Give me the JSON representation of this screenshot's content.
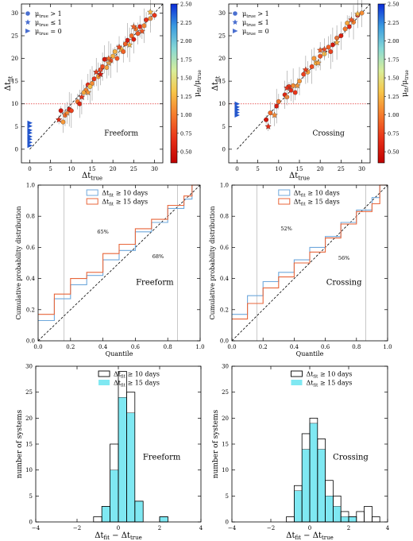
{
  "chart_data": [
    {
      "id": "scatter_freeform",
      "type": "scatter",
      "label": "Freeform",
      "xlabel": "Δt_true",
      "ylabel": "Δt_fit",
      "xlim": [
        -2,
        32
      ],
      "ylim": [
        -3,
        32
      ],
      "xticks": [
        0,
        5,
        10,
        15,
        20,
        25,
        30
      ],
      "yticks": [
        0,
        5,
        10,
        15,
        20,
        25,
        30
      ],
      "hline": 10,
      "colorbar": {
        "label": "μ_fit/μ_true",
        "min": 0.35,
        "max": 2.5,
        "ticks": [
          0.5,
          0.75,
          1.0,
          1.25,
          1.5,
          1.75,
          2.0,
          2.25,
          2.5
        ]
      },
      "legend": [
        "μ_true > 1",
        "μ_true ≤ 1",
        "μ_true = 0"
      ],
      "series": [
        {
          "name": "μ_true > 1",
          "marker": "circle",
          "points": [
            [
              7.5,
              8.5
            ],
            [
              8.5,
              7.5
            ],
            [
              9.5,
              8.8
            ],
            [
              11.5,
              10.5
            ],
            [
              12,
              10
            ],
            [
              13.5,
              13
            ],
            [
              14,
              14.2
            ],
            [
              15,
              14.5
            ],
            [
              15.5,
              15.5
            ],
            [
              16.5,
              16
            ],
            [
              17,
              17.5
            ],
            [
              18.5,
              18
            ],
            [
              19.5,
              19.5
            ],
            [
              20,
              20.5
            ],
            [
              21,
              20
            ],
            [
              22,
              22
            ],
            [
              22.5,
              21.5
            ],
            [
              23.5,
              24
            ],
            [
              24.5,
              25
            ],
            [
              25,
              24.2
            ],
            [
              25.5,
              26.5
            ],
            [
              26.5,
              27
            ],
            [
              27.5,
              27.2
            ],
            [
              28,
              28.5
            ],
            [
              29,
              28.8
            ],
            [
              30,
              29.5
            ],
            [
              8,
              6
            ],
            [
              10,
              8.5
            ],
            [
              13,
              12.5
            ],
            [
              17.5,
              18.2
            ],
            [
              20.5,
              21.5
            ],
            [
              26,
              25.5
            ],
            [
              14.5,
              13.8
            ],
            [
              23,
              23.2
            ],
            [
              18,
              19.8
            ]
          ]
        },
        {
          "name": "μ_true ≤ 1",
          "marker": "star",
          "points": [
            [
              7,
              6.5
            ],
            [
              9,
              8
            ],
            [
              12.5,
              11.5
            ],
            [
              14,
              12.5
            ],
            [
              16,
              17
            ],
            [
              19,
              19
            ],
            [
              21.5,
              22.5
            ],
            [
              24,
              23
            ],
            [
              27,
              26
            ],
            [
              29,
              30.2
            ],
            [
              25,
              27
            ],
            [
              17,
              16.5
            ],
            [
              19,
              20
            ]
          ]
        },
        {
          "name": "μ_true = 0",
          "marker": "triangle",
          "points": [
            [
              0,
              0.8
            ],
            [
              0,
              1.5
            ],
            [
              0,
              2.2
            ],
            [
              0,
              2.8
            ],
            [
              0,
              3.6
            ],
            [
              0,
              4.2
            ],
            [
              0,
              5.1
            ],
            [
              0,
              5.8
            ]
          ]
        }
      ]
    },
    {
      "id": "scatter_crossing",
      "type": "scatter",
      "label": "Crossing",
      "xlabel": "Δt_true",
      "ylabel": "Δt_fit",
      "xlim": [
        -2,
        32
      ],
      "ylim": [
        -3,
        32
      ],
      "xticks": [
        0,
        5,
        10,
        15,
        20,
        25,
        30
      ],
      "yticks": [
        0,
        5,
        10,
        15,
        20,
        25,
        30
      ],
      "hline": 10,
      "colorbar": {
        "label": "μ_fit/μ_true",
        "min": 0.35,
        "max": 2.5,
        "ticks": [
          0.5,
          0.75,
          1.0,
          1.25,
          1.5,
          1.75,
          2.0,
          2.25,
          2.5
        ]
      },
      "legend": [
        "μ_true > 1",
        "μ_true ≤ 1",
        "μ_true = 0"
      ],
      "series": [
        {
          "name": "μ_true > 1",
          "marker": "circle",
          "points": [
            [
              7,
              6.5
            ],
            [
              8,
              8
            ],
            [
              9.5,
              9.5
            ],
            [
              10,
              10.5
            ],
            [
              11.5,
              12
            ],
            [
              12,
              11.5
            ],
            [
              13,
              13
            ],
            [
              13.5,
              14
            ],
            [
              14,
              12.5
            ],
            [
              15,
              15
            ],
            [
              16,
              16.5
            ],
            [
              17,
              17
            ],
            [
              18,
              18.2
            ],
            [
              19,
              19
            ],
            [
              20,
              20.5
            ],
            [
              21,
              21
            ],
            [
              22,
              22.5
            ],
            [
              23,
              23
            ],
            [
              24,
              24.5
            ],
            [
              25,
              25
            ],
            [
              26,
              26.5
            ],
            [
              27,
              27
            ],
            [
              28,
              28
            ],
            [
              29,
              29.5
            ],
            [
              30,
              30
            ],
            [
              12.5,
              13.8
            ],
            [
              18.5,
              20
            ],
            [
              22.5,
              21.5
            ],
            [
              26.5,
              27.8
            ]
          ]
        },
        {
          "name": "μ_true ≤ 1",
          "marker": "star",
          "points": [
            [
              7.5,
              5
            ],
            [
              9,
              7.5
            ],
            [
              12,
              13.5
            ],
            [
              14.5,
              14
            ],
            [
              16.5,
              17.5
            ],
            [
              19.5,
              19
            ],
            [
              21,
              22
            ],
            [
              24,
              23.5
            ],
            [
              27.5,
              28.5
            ],
            [
              29,
              29.8
            ],
            [
              20,
              21.8
            ]
          ]
        },
        {
          "name": "μ_true = 0",
          "marker": "triangle",
          "points": [
            [
              0,
              7.5
            ],
            [
              0,
              8.1
            ],
            [
              0,
              8.7
            ],
            [
              0,
              9.3
            ],
            [
              0,
              10
            ]
          ]
        }
      ]
    },
    {
      "id": "cdf_freeform",
      "type": "line",
      "label": "Freeform",
      "xlabel": "Quantile",
      "ylabel": "Cumulative probability distribution",
      "xlim": [
        0,
        1
      ],
      "ylim": [
        0,
        1
      ],
      "xticks": [
        0.0,
        0.2,
        0.4,
        0.6,
        0.8,
        1.0
      ],
      "yticks": [
        0.0,
        0.2,
        0.4,
        0.6,
        0.8,
        1.0
      ],
      "vlines": [
        0.16,
        0.86
      ],
      "annotations": [
        {
          "text": "65%",
          "x": 0.4,
          "y": 0.69,
          "color": "#f08a2c"
        },
        {
          "text": "68%",
          "x": 0.74,
          "y": 0.53,
          "color": "#4a90d9"
        }
      ],
      "series": [
        {
          "name": "Δt_fit ≥ 10 days",
          "color": "#6fa8dc",
          "steps": [
            [
              0,
              0.13
            ],
            [
              0.1,
              0.27
            ],
            [
              0.2,
              0.36
            ],
            [
              0.3,
              0.42
            ],
            [
              0.4,
              0.52
            ],
            [
              0.5,
              0.58
            ],
            [
              0.6,
              0.7
            ],
            [
              0.7,
              0.76
            ],
            [
              0.8,
              0.85
            ],
            [
              0.9,
              0.91
            ],
            [
              0.95,
              1.0
            ],
            [
              1.0,
              1.0
            ]
          ]
        },
        {
          "name": "Δt_fit ≥ 15 days",
          "color": "#e8663a",
          "steps": [
            [
              0,
              0.17
            ],
            [
              0.1,
              0.3
            ],
            [
              0.2,
              0.4
            ],
            [
              0.3,
              0.44
            ],
            [
              0.4,
              0.56
            ],
            [
              0.5,
              0.62
            ],
            [
              0.6,
              0.72
            ],
            [
              0.7,
              0.78
            ],
            [
              0.8,
              0.87
            ],
            [
              0.9,
              0.93
            ],
            [
              0.95,
              1.0
            ],
            [
              1.0,
              1.0
            ]
          ]
        }
      ]
    },
    {
      "id": "cdf_crossing",
      "type": "line",
      "label": "Crossing",
      "xlabel": "Quantile",
      "ylabel": "Cumulative probability distribution",
      "xlim": [
        0,
        1
      ],
      "ylim": [
        0,
        1
      ],
      "xticks": [
        0.0,
        0.2,
        0.4,
        0.6,
        0.8,
        1.0
      ],
      "yticks": [
        0.0,
        0.2,
        0.4,
        0.6,
        0.8,
        1.0
      ],
      "vlines": [
        0.16,
        0.86
      ],
      "annotations": [
        {
          "text": "52%",
          "x": 0.35,
          "y": 0.71,
          "color": "#4a90d9"
        },
        {
          "text": "56%",
          "x": 0.72,
          "y": 0.52,
          "color": "#f08a2c"
        }
      ],
      "series": [
        {
          "name": "Δt_fit ≥ 10 days",
          "color": "#6fa8dc",
          "steps": [
            [
              0,
              0.17
            ],
            [
              0.1,
              0.29
            ],
            [
              0.2,
              0.38
            ],
            [
              0.3,
              0.44
            ],
            [
              0.4,
              0.52
            ],
            [
              0.5,
              0.6
            ],
            [
              0.6,
              0.67
            ],
            [
              0.7,
              0.76
            ],
            [
              0.8,
              0.84
            ],
            [
              0.9,
              0.92
            ],
            [
              0.95,
              1.0
            ],
            [
              1.0,
              1.0
            ]
          ]
        },
        {
          "name": "Δt_fit ≥ 15 days",
          "color": "#e8663a",
          "steps": [
            [
              0,
              0.14
            ],
            [
              0.1,
              0.24
            ],
            [
              0.2,
              0.34
            ],
            [
              0.3,
              0.41
            ],
            [
              0.4,
              0.5
            ],
            [
              0.5,
              0.57
            ],
            [
              0.6,
              0.66
            ],
            [
              0.7,
              0.75
            ],
            [
              0.8,
              0.83
            ],
            [
              0.9,
              0.88
            ],
            [
              0.95,
              1.0
            ],
            [
              1.0,
              1.0
            ]
          ]
        }
      ]
    },
    {
      "id": "hist_freeform",
      "type": "bar",
      "label": "Freeform",
      "xlabel": "Δt_fit − Δt_true",
      "ylabel": "number of systems",
      "xlim": [
        -4,
        4
      ],
      "ylim": [
        0,
        30
      ],
      "xticks": [
        -4,
        -2,
        0,
        2,
        4
      ],
      "yticks": [
        0,
        5,
        10,
        15,
        20,
        25,
        30
      ],
      "bin_edges": [
        -1.2,
        -0.8,
        -0.4,
        0.0,
        0.4,
        0.8,
        1.2,
        1.6,
        2.0,
        2.4
      ],
      "series": [
        {
          "name": "Δt_fit ≥ 10 days",
          "style": "outline",
          "values": [
            1,
            3,
            15,
            29,
            25,
            4,
            0,
            0,
            1
          ]
        },
        {
          "name": "Δt_fit ≥ 15 days",
          "style": "filled",
          "color": "#7fe8f2",
          "values": [
            0,
            3,
            10,
            24,
            21,
            4,
            0,
            0,
            1
          ]
        }
      ]
    },
    {
      "id": "hist_crossing",
      "type": "bar",
      "label": "Crossing",
      "xlabel": "Δt_fit − Δt_true",
      "ylabel": "number of systems",
      "xlim": [
        -4,
        4
      ],
      "ylim": [
        0,
        30
      ],
      "xticks": [
        -4,
        -2,
        0,
        2,
        4
      ],
      "yticks": [
        0,
        5,
        10,
        15,
        20,
        25,
        30
      ],
      "bin_edges": [
        -1.6,
        -1.2,
        -0.8,
        -0.4,
        0.0,
        0.4,
        0.8,
        1.2,
        1.6,
        2.0,
        2.4,
        2.8,
        3.2,
        3.6
      ],
      "series": [
        {
          "name": "Δt_fit ≥ 10 days",
          "style": "outline",
          "values": [
            0,
            1,
            7,
            17,
            20,
            16,
            8,
            5,
            2,
            1,
            2,
            3,
            1
          ]
        },
        {
          "name": "Δt_fit ≥ 15 days",
          "style": "filled",
          "color": "#7fe8f2",
          "values": [
            0,
            0,
            6,
            14,
            19,
            14,
            5,
            3,
            1,
            1,
            0,
            0,
            0
          ]
        }
      ]
    }
  ]
}
